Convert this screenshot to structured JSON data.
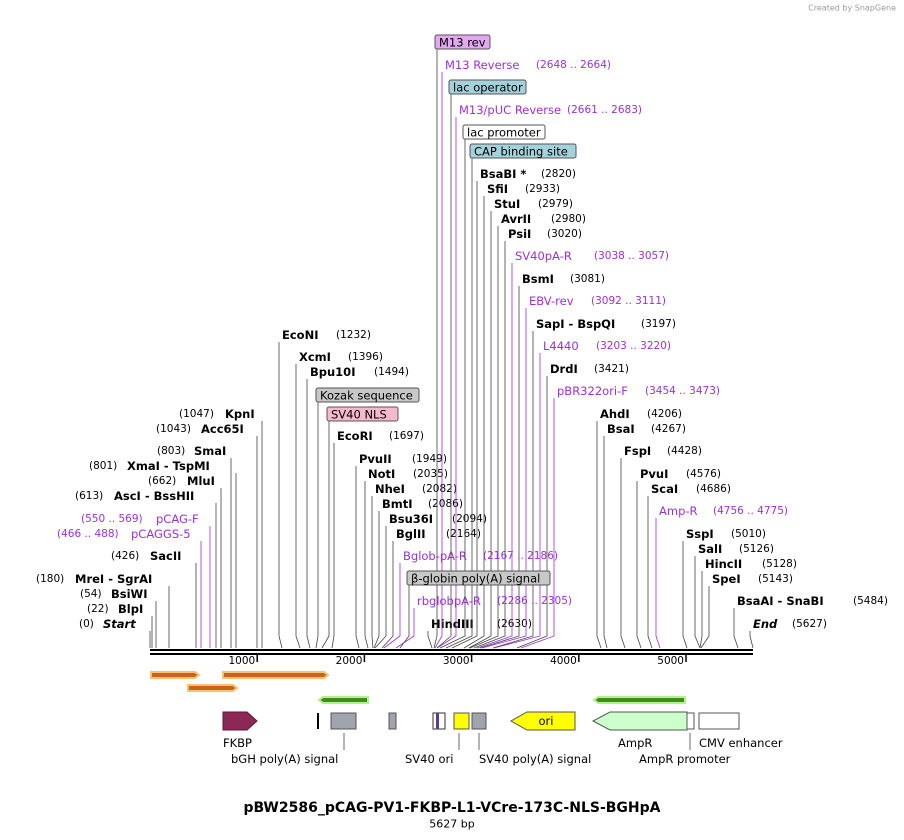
{
  "header": {
    "watermark": "Created by SnapGene"
  },
  "enzymes": [
    {
      "name": "Start",
      "position": "(0)",
      "italic": true
    },
    {
      "name": "BlpI",
      "position": "(22)"
    },
    {
      "name": "BsiWI",
      "position": "(54)"
    },
    {
      "name": "MreI  -  SgrAI",
      "position": "(180)"
    },
    {
      "name": "SacII",
      "position": "(426)"
    },
    {
      "name": "AscI  -  BssHII",
      "position": "(613)"
    },
    {
      "name": "MluI",
      "position": "(662)"
    },
    {
      "name": "XmaI  -  TspMI",
      "position": "(801)"
    },
    {
      "name": "SmaI",
      "position": "(803)"
    },
    {
      "name": "Acc65I",
      "position": "(1043)"
    },
    {
      "name": "KpnI",
      "position": "(1047)"
    },
    {
      "name": "EcoNI",
      "position": "(1232)"
    },
    {
      "name": "XcmI",
      "position": "(1396)"
    },
    {
      "name": "Bpu10I",
      "position": "(1494)"
    },
    {
      "name": "EcoRI",
      "position": "(1697)"
    },
    {
      "name": "PvuII",
      "position": "(1949)"
    },
    {
      "name": "NotI",
      "position": "(2035)"
    },
    {
      "name": "NheI",
      "position": "(2082)"
    },
    {
      "name": "BmtI",
      "position": "(2086)"
    },
    {
      "name": "Bsu36I",
      "position": "(2094)"
    },
    {
      "name": "BglII",
      "position": "(2164)"
    },
    {
      "name": "HindIII",
      "position": "(2630)"
    },
    {
      "name": "BsaBI *",
      "position": "(2820)"
    },
    {
      "name": "SfiI",
      "position": "(2933)"
    },
    {
      "name": "StuI",
      "position": "(2979)"
    },
    {
      "name": "AvrII",
      "position": "(2980)"
    },
    {
      "name": "PsiI",
      "position": "(3020)"
    },
    {
      "name": "BsmI",
      "position": "(3081)"
    },
    {
      "name": "SapI  -  BspQI",
      "position": "(3197)"
    },
    {
      "name": "DrdI",
      "position": "(3421)"
    },
    {
      "name": "AhdI",
      "position": "(4206)"
    },
    {
      "name": "BsaI",
      "position": "(4267)"
    },
    {
      "name": "FspI",
      "position": "(4428)"
    },
    {
      "name": "PvuI",
      "position": "(4576)"
    },
    {
      "name": "ScaI",
      "position": "(4686)"
    },
    {
      "name": "SspI",
      "position": "(5010)"
    },
    {
      "name": "SalI",
      "position": "(5126)"
    },
    {
      "name": "HincII",
      "position": "(5128)"
    },
    {
      "name": "SpeI",
      "position": "(5143)"
    },
    {
      "name": "BsaAI  -  SnaBI",
      "position": "(5484)"
    },
    {
      "name": "End",
      "position": "(5627)",
      "italic": true
    }
  ],
  "primers": [
    {
      "name": "pCAGGS-5",
      "range": "(466 .. 488)"
    },
    {
      "name": "pCAG-F",
      "range": "(550 .. 569)"
    },
    {
      "name": "Bglob-pA-R",
      "range": "(2167 .. 2186)"
    },
    {
      "name": "rbglobpA-R",
      "range": "(2286 .. 2305)"
    },
    {
      "name": "M13 Reverse",
      "range": "(2648 .. 2664)"
    },
    {
      "name": "M13/pUC Reverse",
      "range": "(2661 .. 2683)"
    },
    {
      "name": "SV40pA-R",
      "range": "(3038 .. 3057)"
    },
    {
      "name": "EBV-rev",
      "range": "(3092 .. 3111)"
    },
    {
      "name": "L4440",
      "range": "(3203 .. 3220)"
    },
    {
      "name": "pBR322ori-F",
      "range": "(3454 .. 3473)"
    },
    {
      "name": "Amp-R",
      "range": "(4756 .. 4775)"
    }
  ],
  "boxed_features": [
    {
      "name": "M13 rev",
      "color": "#e2a9f1"
    },
    {
      "name": "lac operator",
      "color": "#a3d2dc"
    },
    {
      "name": "lac promoter",
      "color": "#ffffff"
    },
    {
      "name": "CAP binding site",
      "color": "#a3d2dc"
    },
    {
      "name": "Kozak sequence",
      "color": "#c8c8c8"
    },
    {
      "name": "SV40 NLS",
      "color": "#f5b9cc"
    },
    {
      "name": "β-globin poly(A) signal",
      "color": "#c8c8c8"
    }
  ],
  "ruler": {
    "ticks": [
      1000,
      2000,
      3000,
      4000,
      5000
    ]
  },
  "features": [
    {
      "name": "FKBP"
    },
    {
      "name": "bGH poly(A) signal"
    },
    {
      "name": "SV40 ori"
    },
    {
      "name": "SV40 poly(A) signal"
    },
    {
      "name": "ori"
    },
    {
      "name": "AmpR"
    },
    {
      "name": "AmpR promoter"
    },
    {
      "name": "CMV enhancer"
    }
  ],
  "title": "pBW2586_pCAG-PV1-FKBP-L1-VCre-173C-NLS-BGHpA",
  "subtitle": "5627 bp"
}
